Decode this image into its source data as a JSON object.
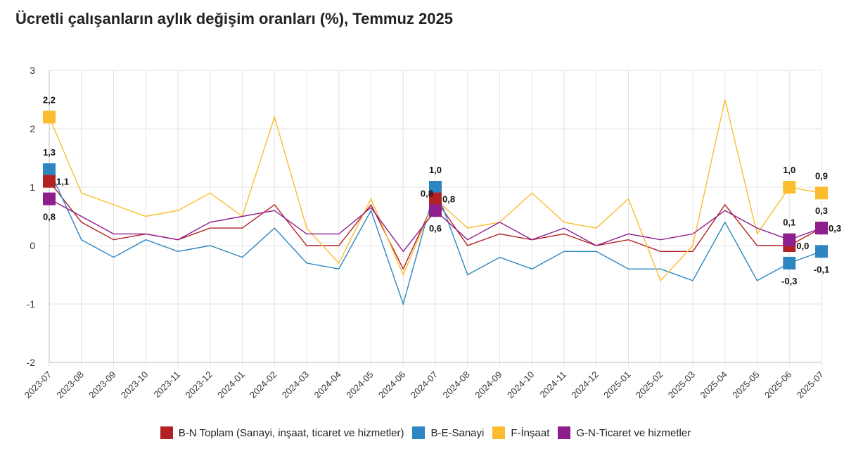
{
  "title": "Ücretli çalışanların aylık değişim oranları (%), Temmuz 2025",
  "chart_data": {
    "type": "line",
    "x": [
      "2023-07",
      "2023-08",
      "2023-09",
      "2023-10",
      "2023-11",
      "2023-12",
      "2024-01",
      "2024-02",
      "2024-03",
      "2024-04",
      "2024-05",
      "2024-06",
      "2024-07",
      "2024-08",
      "2024-09",
      "2024-10",
      "2024-11",
      "2024-12",
      "2025-01",
      "2025-02",
      "2025-03",
      "2025-04",
      "2025-05",
      "2025-06",
      "2025-07"
    ],
    "ylim": [
      -2,
      3
    ],
    "yticks": [
      "-2",
      "-1",
      "0",
      "1",
      "2",
      "3"
    ],
    "grid": true,
    "legend_position": "bottom",
    "series": [
      {
        "name": "B-N Toplam (Sanayi, inşaat, ticaret ve hizmetler)",
        "color": "#b22222",
        "values": [
          1.1,
          0.4,
          0.1,
          0.2,
          0.1,
          0.3,
          0.3,
          0.7,
          0.0,
          0.0,
          0.7,
          -0.4,
          0.8,
          0.0,
          0.2,
          0.1,
          0.2,
          0.0,
          0.1,
          -0.1,
          -0.1,
          0.7,
          0.0,
          0.0,
          0.3
        ]
      },
      {
        "name": "B-E-Sanayi",
        "color": "#2e86c1",
        "values": [
          1.3,
          0.1,
          -0.2,
          0.1,
          -0.1,
          0.0,
          -0.2,
          0.3,
          -0.3,
          -0.4,
          0.6,
          -1.0,
          1.0,
          -0.5,
          -0.2,
          -0.4,
          -0.1,
          -0.1,
          -0.4,
          -0.4,
          -0.6,
          0.4,
          -0.6,
          -0.3,
          -0.1
        ]
      },
      {
        "name": "F-İnşaat",
        "color": "#fbbd2e",
        "values": [
          2.2,
          0.9,
          0.7,
          0.5,
          0.6,
          0.9,
          0.5,
          2.2,
          0.3,
          -0.3,
          0.8,
          -0.5,
          0.8,
          0.3,
          0.4,
          0.9,
          0.4,
          0.3,
          0.8,
          -0.6,
          0.0,
          2.5,
          0.2,
          1.0,
          0.9
        ]
      },
      {
        "name": "G-N-Ticaret ve hizmetler",
        "color": "#8e1e8e",
        "values": [
          0.8,
          0.5,
          0.2,
          0.2,
          0.1,
          0.4,
          0.5,
          0.6,
          0.2,
          0.2,
          0.65,
          -0.1,
          0.6,
          0.1,
          0.4,
          0.1,
          0.3,
          0.0,
          0.2,
          0.1,
          0.2,
          0.6,
          0.3,
          0.1,
          0.3
        ]
      }
    ],
    "data_labels": [
      {
        "series": 2,
        "index": 0,
        "text": "2,2",
        "pos": "above"
      },
      {
        "series": 1,
        "index": 0,
        "text": "1,3",
        "pos": "above"
      },
      {
        "series": 0,
        "index": 0,
        "text": "1,1",
        "pos": "right"
      },
      {
        "series": 3,
        "index": 0,
        "text": "0,8",
        "pos": "below"
      },
      {
        "series": 1,
        "index": 12,
        "text": "1,0",
        "pos": "above"
      },
      {
        "series": 0,
        "index": 12,
        "text": "0,8",
        "pos": "left"
      },
      {
        "series": 2,
        "index": 12,
        "text": "0,8",
        "pos": "right"
      },
      {
        "series": 3,
        "index": 12,
        "text": "0,6",
        "pos": "below"
      },
      {
        "series": 2,
        "index": 23,
        "text": "1,0",
        "pos": "above"
      },
      {
        "series": 3,
        "index": 23,
        "text": "0,1",
        "pos": "above"
      },
      {
        "series": 0,
        "index": 23,
        "text": "0,0",
        "pos": "right"
      },
      {
        "series": 1,
        "index": 23,
        "text": "-0,3",
        "pos": "below"
      },
      {
        "series": 2,
        "index": 24,
        "text": "0,9",
        "pos": "above"
      },
      {
        "series": 0,
        "index": 24,
        "text": "0,3",
        "pos": "right"
      },
      {
        "series": 3,
        "index": 24,
        "text": "0,3",
        "pos": "above"
      },
      {
        "series": 1,
        "index": 24,
        "text": "-0,1",
        "pos": "below"
      }
    ]
  }
}
